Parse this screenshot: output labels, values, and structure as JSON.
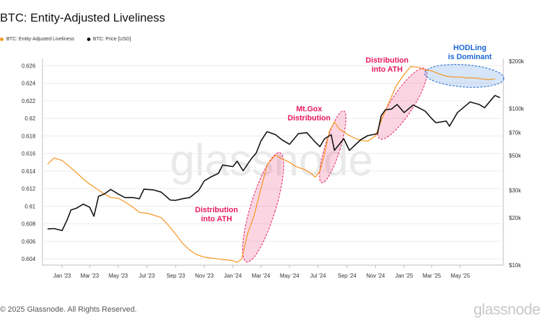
{
  "title": "BTC: Entity-Adjusted Liveliness",
  "footer": "© 2025 Glassnode. All Rights Reserved.",
  "brand": "glassnode",
  "watermark": "glassnode",
  "colors": {
    "liveliness": "#f7931a",
    "price": "#111111",
    "red_annot": "#e8175d",
    "blue_annot": "#1a66d6"
  },
  "chart_data": {
    "type": "line",
    "x_tick_labels": [
      "Jan '23",
      "Mar '23",
      "May '23",
      "Jul '23",
      "Sep '23",
      "Nov '23",
      "Jan '24",
      "Mar '24",
      "May '24",
      "Jul '24",
      "Sep '24",
      "Nov '24",
      "Jan '25",
      "Mar '25",
      "May '25"
    ],
    "left_axis": {
      "ticks": [
        "0.626",
        "0.624",
        "0.622",
        "0.62",
        "0.618",
        "0.616",
        "0.614",
        "0.612",
        "0.61",
        "0.608",
        "0.606",
        "0.604"
      ],
      "ylim": [
        0.6033,
        0.6265
      ]
    },
    "right_axis": {
      "scale": "log",
      "ticks": [
        "$200k",
        "$100k",
        "$70k",
        "$50k",
        "$30k",
        "$20k",
        "$10k"
      ],
      "tick_values": [
        200000,
        100000,
        70000,
        50000,
        30000,
        20000,
        10000
      ],
      "ylim": [
        10000,
        200000
      ]
    },
    "legend_position": "top-left",
    "grid": "horizontal",
    "series": [
      {
        "name": "BTC: Entity-Adjusted Liveliness",
        "axis": "left",
        "x": [
          "2022-12-01",
          "2022-12-15",
          "2023-01-01",
          "2023-01-15",
          "2023-02-01",
          "2023-02-15",
          "2023-03-01",
          "2023-03-15",
          "2023-04-01",
          "2023-04-15",
          "2023-05-01",
          "2023-05-15",
          "2023-06-01",
          "2023-06-15",
          "2023-07-01",
          "2023-07-15",
          "2023-08-01",
          "2023-08-15",
          "2023-09-01",
          "2023-09-15",
          "2023-10-01",
          "2023-10-15",
          "2023-11-01",
          "2023-11-15",
          "2023-12-01",
          "2023-12-15",
          "2024-01-01",
          "2024-01-10",
          "2024-01-20",
          "2024-02-01",
          "2024-02-15",
          "2024-03-01",
          "2024-03-15",
          "2024-04-01",
          "2024-04-15",
          "2024-05-01",
          "2024-05-15",
          "2024-06-01",
          "2024-06-15",
          "2024-06-25",
          "2024-07-05",
          "2024-07-15",
          "2024-07-25",
          "2024-08-05",
          "2024-08-15",
          "2024-09-01",
          "2024-09-15",
          "2024-10-01",
          "2024-10-15",
          "2024-11-01",
          "2024-11-15",
          "2024-12-01",
          "2024-12-15",
          "2025-01-01",
          "2025-01-15",
          "2025-02-01",
          "2025-02-15",
          "2025-03-01",
          "2025-03-15",
          "2025-04-01",
          "2025-04-15",
          "2025-05-01",
          "2025-05-15",
          "2025-06-01",
          "2025-06-15",
          "2025-07-01",
          "2025-07-15"
        ],
        "values": [
          0.6148,
          0.6155,
          0.6152,
          0.6146,
          0.6138,
          0.6131,
          0.6125,
          0.612,
          0.6114,
          0.611,
          0.6109,
          0.6105,
          0.6099,
          0.6093,
          0.6092,
          0.609,
          0.6087,
          0.6079,
          0.6068,
          0.6058,
          0.605,
          0.6045,
          0.6042,
          0.6041,
          0.604,
          0.6039,
          0.6038,
          0.6036,
          0.604,
          0.6068,
          0.6089,
          0.612,
          0.6148,
          0.6158,
          0.6154,
          0.615,
          0.6145,
          0.6142,
          0.6138,
          0.6133,
          0.614,
          0.616,
          0.6185,
          0.6196,
          0.6188,
          0.6182,
          0.6178,
          0.6175,
          0.6174,
          0.618,
          0.62,
          0.622,
          0.6237,
          0.625,
          0.6259,
          0.6258,
          0.6255,
          0.6254,
          0.6251,
          0.6248,
          0.6247,
          0.6247,
          0.6246,
          0.6246,
          0.6245,
          0.6244,
          0.6245
        ]
      },
      {
        "name": "BTC: Price [USD]",
        "axis": "right",
        "x": [
          "2022-12-01",
          "2022-12-15",
          "2023-01-01",
          "2023-01-12",
          "2023-01-20",
          "2023-02-01",
          "2023-02-15",
          "2023-03-01",
          "2023-03-10",
          "2023-03-20",
          "2023-04-01",
          "2023-04-15",
          "2023-05-01",
          "2023-05-15",
          "2023-06-01",
          "2023-06-15",
          "2023-06-25",
          "2023-07-15",
          "2023-08-01",
          "2023-08-20",
          "2023-09-01",
          "2023-09-15",
          "2023-10-01",
          "2023-10-20",
          "2023-11-01",
          "2023-11-15",
          "2023-12-01",
          "2023-12-10",
          "2024-01-01",
          "2024-01-10",
          "2024-01-23",
          "2024-02-10",
          "2024-02-20",
          "2024-03-01",
          "2024-03-14",
          "2024-04-01",
          "2024-04-15",
          "2024-05-01",
          "2024-05-20",
          "2024-06-07",
          "2024-06-25",
          "2024-07-05",
          "2024-07-15",
          "2024-07-29",
          "2024-08-05",
          "2024-08-25",
          "2024-09-06",
          "2024-09-30",
          "2024-10-15",
          "2024-11-05",
          "2024-11-13",
          "2024-11-22",
          "2024-12-05",
          "2024-12-17",
          "2025-01-01",
          "2025-01-20",
          "2025-02-01",
          "2025-02-15",
          "2025-03-01",
          "2025-03-10",
          "2025-04-01",
          "2025-04-08",
          "2025-04-25",
          "2025-05-22",
          "2025-06-10",
          "2025-06-22",
          "2025-07-14",
          "2025-07-25"
        ],
        "values": [
          17000,
          17100,
          16600,
          19500,
          22500,
          23100,
          24500,
          23400,
          20500,
          27500,
          28400,
          30400,
          28400,
          27000,
          27000,
          26500,
          30500,
          30200,
          29200,
          26000,
          25900,
          26500,
          27000,
          30000,
          34500,
          36500,
          38500,
          43500,
          42500,
          46000,
          40000,
          48000,
          52000,
          62000,
          71000,
          68000,
          63000,
          59000,
          69000,
          70000,
          61000,
          57000,
          64000,
          68000,
          54000,
          64000,
          54000,
          63000,
          67000,
          69000,
          90000,
          98000,
          99000,
          106000,
          94000,
          105000,
          101000,
          96000,
          86000,
          81000,
          83000,
          77000,
          94000,
          110000,
          106000,
          101000,
          121000,
          117000
        ]
      }
    ],
    "annotations": [
      {
        "text": [
          "Distribution",
          "into ATH"
        ],
        "color": "red"
      },
      {
        "text": [
          "Mt.Gox",
          "Distribution"
        ],
        "color": "red"
      },
      {
        "text": [
          "Distribution",
          "into ATH"
        ],
        "color": "red"
      },
      {
        "text": [
          "HODLing",
          "is Dominant"
        ],
        "color": "blue"
      }
    ]
  }
}
